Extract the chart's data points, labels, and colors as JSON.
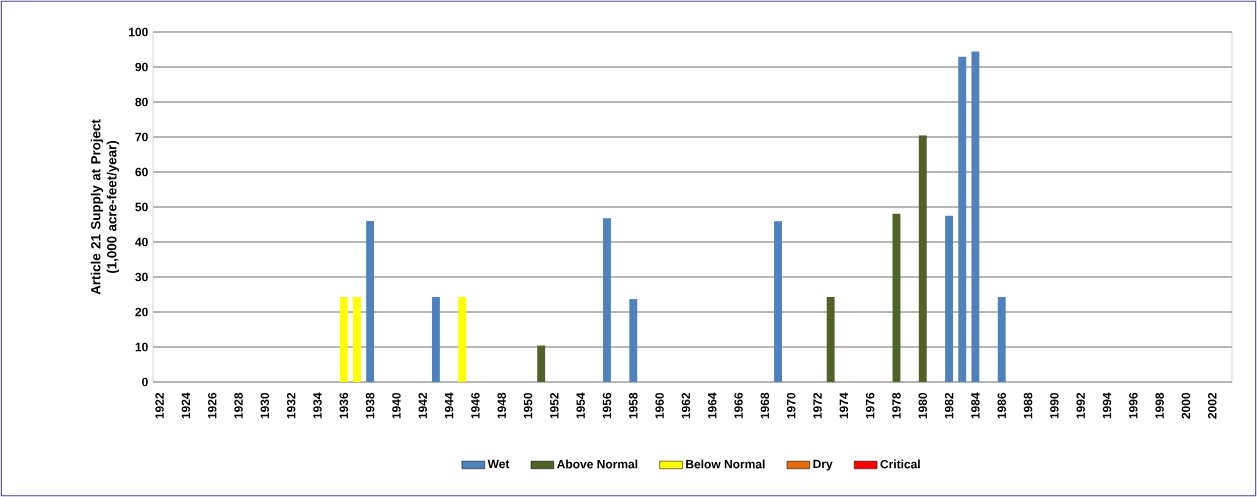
{
  "chart_data": {
    "type": "bar",
    "ylabel": "Article 21 Supply at Project (1,000 acre-feet/year)",
    "categories": [
      "1922",
      null,
      "1924",
      null,
      "1926",
      null,
      "1928",
      null,
      "1930",
      null,
      "1932",
      null,
      "1934",
      null,
      "1936",
      null,
      "1938",
      null,
      "1940",
      null,
      "1942",
      null,
      "1944",
      null,
      "1946",
      null,
      "1948",
      null,
      "1950",
      null,
      "1952",
      null,
      "1954",
      null,
      "1956",
      null,
      "1958",
      null,
      "1960",
      null,
      "1962",
      null,
      "1964",
      null,
      "1966",
      null,
      "1968",
      null,
      "1970",
      null,
      "1972",
      null,
      "1974",
      null,
      "1976",
      null,
      "1978",
      null,
      "1980",
      null,
      "1982",
      null,
      "1984",
      null,
      "1986",
      null,
      "1988",
      null,
      "1990",
      null,
      "1992",
      null,
      "1994",
      null,
      "1996",
      null,
      "1998",
      null,
      "2000",
      null,
      "2002",
      null
    ],
    "series": [
      {
        "name": "Wet",
        "color": "#4f81bd",
        "values": [
          null,
          null,
          null,
          null,
          null,
          null,
          null,
          null,
          null,
          null,
          null,
          null,
          null,
          null,
          null,
          null,
          46,
          null,
          null,
          null,
          null,
          24.3,
          null,
          null,
          null,
          null,
          null,
          null,
          null,
          null,
          null,
          null,
          null,
          null,
          46.8,
          null,
          23.7,
          null,
          null,
          null,
          null,
          null,
          null,
          null,
          null,
          null,
          null,
          45.9,
          null,
          null,
          null,
          null,
          null,
          null,
          null,
          null,
          null,
          null,
          null,
          null,
          47.5,
          92.9,
          94.4,
          null,
          24.3,
          null,
          null,
          null,
          null,
          null,
          null,
          null,
          null,
          null,
          null,
          null,
          null,
          null,
          null,
          null,
          null,
          null
        ]
      },
      {
        "name": "Above Normal",
        "color": "#4f6228",
        "values": [
          null,
          null,
          null,
          null,
          null,
          null,
          null,
          null,
          null,
          null,
          null,
          null,
          null,
          null,
          null,
          null,
          null,
          null,
          null,
          null,
          null,
          null,
          null,
          null,
          null,
          null,
          null,
          null,
          null,
          10.4,
          null,
          null,
          null,
          null,
          null,
          null,
          null,
          null,
          null,
          null,
          null,
          null,
          null,
          null,
          null,
          null,
          null,
          null,
          null,
          null,
          null,
          24.3,
          null,
          null,
          null,
          null,
          48.1,
          null,
          70.5,
          null,
          null,
          null,
          null,
          null,
          null,
          null,
          null,
          null,
          null,
          null,
          null,
          null,
          null,
          null,
          null,
          null,
          null,
          null,
          null,
          null,
          null,
          null
        ]
      },
      {
        "name": "Below Normal",
        "color": "#ffff00",
        "values": [
          null,
          null,
          null,
          null,
          null,
          null,
          null,
          null,
          null,
          null,
          null,
          null,
          null,
          null,
          24.3,
          24.3,
          null,
          null,
          null,
          null,
          null,
          null,
          null,
          24.3,
          null,
          null,
          null,
          null,
          null,
          null,
          null,
          null,
          null,
          null,
          null,
          null,
          null,
          null,
          null,
          null,
          null,
          null,
          null,
          null,
          null,
          null,
          null,
          null,
          null,
          null,
          null,
          null,
          null,
          null,
          null,
          null,
          null,
          null,
          null,
          null,
          null,
          null,
          null,
          null,
          null,
          null,
          null,
          null,
          null,
          null,
          null,
          null,
          null,
          null,
          null,
          null,
          null,
          null,
          null,
          null,
          null,
          null
        ]
      },
      {
        "name": "Dry",
        "color": "#e46c0a",
        "values": [
          null,
          null,
          null,
          null,
          null,
          null,
          null,
          null,
          null,
          null,
          null,
          null,
          null,
          null,
          null,
          null,
          null,
          null,
          null,
          null,
          null,
          null,
          null,
          null,
          null,
          null,
          null,
          null,
          null,
          null,
          null,
          null,
          null,
          null,
          null,
          null,
          null,
          null,
          null,
          null,
          null,
          null,
          null,
          null,
          null,
          null,
          null,
          null,
          null,
          null,
          null,
          null,
          null,
          null,
          null,
          null,
          null,
          null,
          null,
          null,
          null,
          null,
          null,
          null,
          null,
          null,
          null,
          null,
          null,
          null,
          null,
          null,
          null,
          null,
          null,
          null,
          null,
          null,
          null,
          null,
          null,
          null
        ]
      },
      {
        "name": "Critical",
        "color": "#ff0000",
        "values": [
          null,
          null,
          null,
          null,
          null,
          null,
          null,
          null,
          null,
          null,
          null,
          null,
          null,
          null,
          null,
          null,
          null,
          null,
          null,
          null,
          null,
          null,
          null,
          null,
          null,
          null,
          null,
          null,
          null,
          null,
          null,
          null,
          null,
          null,
          null,
          null,
          null,
          null,
          null,
          null,
          null,
          null,
          null,
          null,
          null,
          null,
          null,
          null,
          null,
          null,
          null,
          null,
          null,
          null,
          null,
          null,
          null,
          null,
          null,
          null,
          null,
          null,
          null,
          null,
          null,
          null,
          null,
          null,
          null,
          null,
          null,
          null,
          null,
          null,
          null,
          null,
          null,
          null,
          null,
          null,
          null,
          null
        ]
      }
    ],
    "ylim": [
      0,
      100
    ],
    "yticks": [
      0,
      10,
      20,
      30,
      40,
      50,
      60,
      70,
      80,
      90,
      100
    ],
    "grid": "y",
    "legend": "bottom"
  }
}
